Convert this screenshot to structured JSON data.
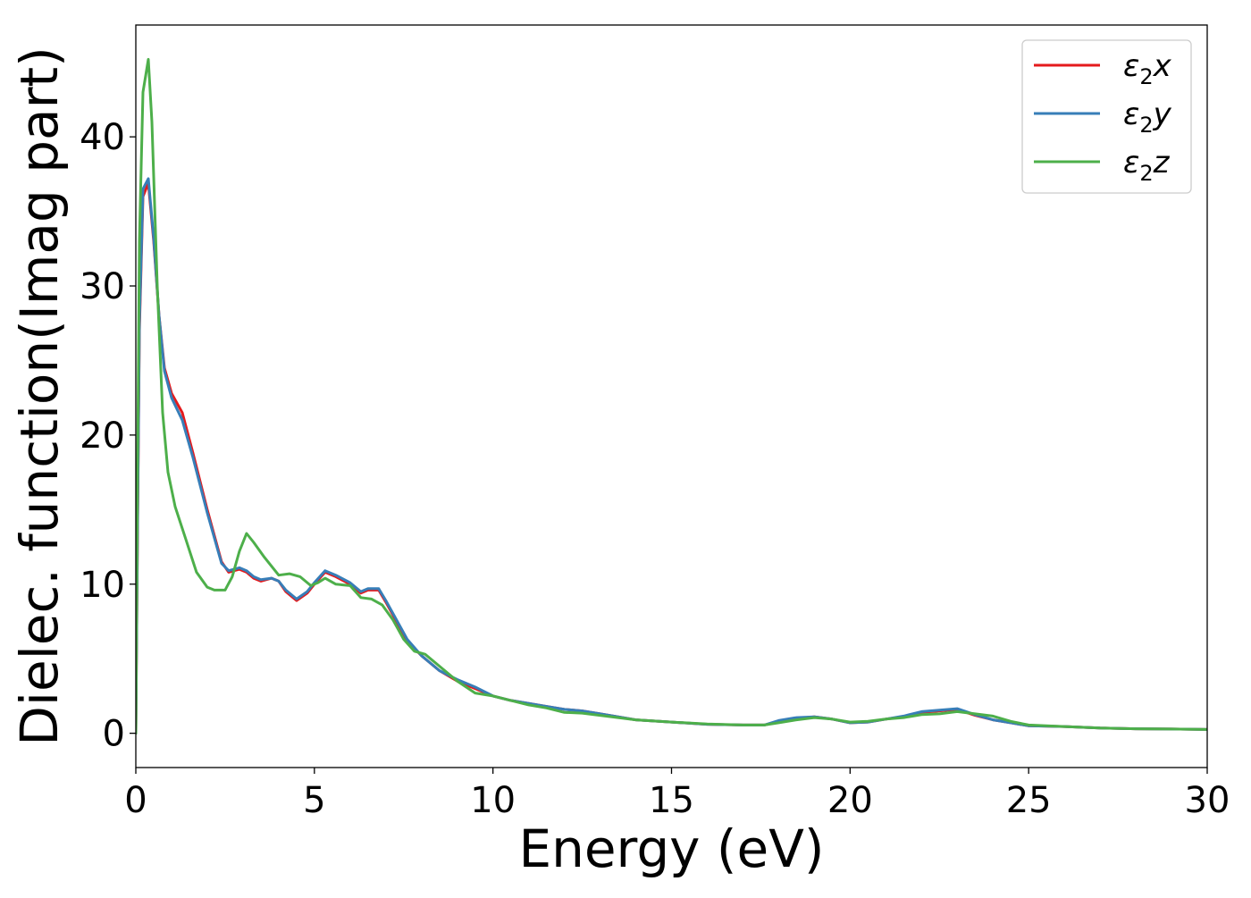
{
  "chart_data": {
    "type": "line",
    "title": "",
    "xlabel": "Energy (eV)",
    "ylabel": "Dielec. function(Imag part)",
    "xlim": [
      0,
      30
    ],
    "ylim": [
      -2.3,
      47.5
    ],
    "xticks": [
      0,
      5,
      10,
      15,
      20,
      25,
      30
    ],
    "yticks": [
      0,
      10,
      20,
      30,
      40
    ],
    "xtick_labels": [
      "0",
      "5",
      "10",
      "15",
      "20",
      "25",
      "30"
    ],
    "ytick_labels": [
      "0",
      "10",
      "20",
      "30",
      "40"
    ],
    "grid": false,
    "legend_position": "top-right",
    "series": [
      {
        "name": "ε2x",
        "legend_base": "ε",
        "legend_sub": "2",
        "legend_tail": "x",
        "color": "#e41a1c",
        "points": [
          [
            0,
            0
          ],
          [
            0.05,
            14
          ],
          [
            0.1,
            27
          ],
          [
            0.2,
            36
          ],
          [
            0.35,
            36.9
          ],
          [
            0.5,
            33
          ],
          [
            0.65,
            28
          ],
          [
            0.8,
            24.5
          ],
          [
            1.0,
            22.8
          ],
          [
            1.3,
            21.5
          ],
          [
            1.6,
            18.8
          ],
          [
            2.0,
            15
          ],
          [
            2.4,
            11.5
          ],
          [
            2.6,
            10.8
          ],
          [
            2.9,
            11
          ],
          [
            3.1,
            10.8
          ],
          [
            3.3,
            10.4
          ],
          [
            3.5,
            10.2
          ],
          [
            3.8,
            10.4
          ],
          [
            4.0,
            10.2
          ],
          [
            4.2,
            9.5
          ],
          [
            4.5,
            8.9
          ],
          [
            4.8,
            9.4
          ],
          [
            5.0,
            10
          ],
          [
            5.3,
            10.8
          ],
          [
            5.6,
            10.5
          ],
          [
            6.0,
            10
          ],
          [
            6.3,
            9.4
          ],
          [
            6.5,
            9.6
          ],
          [
            6.8,
            9.6
          ],
          [
            7.0,
            8.8
          ],
          [
            7.3,
            7.5
          ],
          [
            7.6,
            6.2
          ],
          [
            8.0,
            5.2
          ],
          [
            8.5,
            4.2
          ],
          [
            9.0,
            3.5
          ],
          [
            9.5,
            3.0
          ],
          [
            10.0,
            2.5
          ],
          [
            10.5,
            2.2
          ],
          [
            11.0,
            2.0
          ],
          [
            11.5,
            1.8
          ],
          [
            12.0,
            1.6
          ],
          [
            12.5,
            1.5
          ],
          [
            13.0,
            1.3
          ],
          [
            14.0,
            0.9
          ],
          [
            15.0,
            0.75
          ],
          [
            16.0,
            0.6
          ],
          [
            17.0,
            0.55
          ],
          [
            17.6,
            0.55
          ],
          [
            18.0,
            0.8
          ],
          [
            18.5,
            1.0
          ],
          [
            19.0,
            1.1
          ],
          [
            19.5,
            0.95
          ],
          [
            20.0,
            0.7
          ],
          [
            20.5,
            0.75
          ],
          [
            21.0,
            0.95
          ],
          [
            21.5,
            1.1
          ],
          [
            22.0,
            1.4
          ],
          [
            22.5,
            1.5
          ],
          [
            23.0,
            1.6
          ],
          [
            23.5,
            1.2
          ],
          [
            24.0,
            0.9
          ],
          [
            24.5,
            0.7
          ],
          [
            25.0,
            0.5
          ],
          [
            26.0,
            0.45
          ],
          [
            27.0,
            0.35
          ],
          [
            28.0,
            0.3
          ],
          [
            29.0,
            0.28
          ],
          [
            30.0,
            0.25
          ]
        ]
      },
      {
        "name": "ε2y",
        "legend_base": "ε",
        "legend_sub": "2",
        "legend_tail": "y",
        "color": "#377eb8",
        "points": [
          [
            0,
            0
          ],
          [
            0.05,
            14.5
          ],
          [
            0.1,
            27.5
          ],
          [
            0.2,
            36.5
          ],
          [
            0.35,
            37.2
          ],
          [
            0.5,
            33.2
          ],
          [
            0.65,
            28
          ],
          [
            0.8,
            24.3
          ],
          [
            1.0,
            22.5
          ],
          [
            1.3,
            21.0
          ],
          [
            1.6,
            18.5
          ],
          [
            2.0,
            14.8
          ],
          [
            2.4,
            11.4
          ],
          [
            2.6,
            10.9
          ],
          [
            2.9,
            11.1
          ],
          [
            3.1,
            10.9
          ],
          [
            3.3,
            10.5
          ],
          [
            3.5,
            10.3
          ],
          [
            3.8,
            10.4
          ],
          [
            4.0,
            10.2
          ],
          [
            4.2,
            9.6
          ],
          [
            4.5,
            9.0
          ],
          [
            4.8,
            9.5
          ],
          [
            5.0,
            10.1
          ],
          [
            5.3,
            10.9
          ],
          [
            5.6,
            10.6
          ],
          [
            6.0,
            10.1
          ],
          [
            6.3,
            9.5
          ],
          [
            6.5,
            9.7
          ],
          [
            6.8,
            9.7
          ],
          [
            7.0,
            8.9
          ],
          [
            7.3,
            7.6
          ],
          [
            7.6,
            6.3
          ],
          [
            8.0,
            5.2
          ],
          [
            8.5,
            4.2
          ],
          [
            9.0,
            3.6
          ],
          [
            9.5,
            3.1
          ],
          [
            10.0,
            2.5
          ],
          [
            10.5,
            2.2
          ],
          [
            11.0,
            2.0
          ],
          [
            11.5,
            1.8
          ],
          [
            12.0,
            1.6
          ],
          [
            12.5,
            1.5
          ],
          [
            13.0,
            1.3
          ],
          [
            14.0,
            0.9
          ],
          [
            15.0,
            0.75
          ],
          [
            16.0,
            0.6
          ],
          [
            17.0,
            0.55
          ],
          [
            17.6,
            0.55
          ],
          [
            18.0,
            0.85
          ],
          [
            18.5,
            1.05
          ],
          [
            19.0,
            1.1
          ],
          [
            19.5,
            0.95
          ],
          [
            20.0,
            0.7
          ],
          [
            20.5,
            0.75
          ],
          [
            21.0,
            0.95
          ],
          [
            21.5,
            1.15
          ],
          [
            22.0,
            1.45
          ],
          [
            22.5,
            1.55
          ],
          [
            23.0,
            1.65
          ],
          [
            23.5,
            1.25
          ],
          [
            24.0,
            0.9
          ],
          [
            24.5,
            0.7
          ],
          [
            25.0,
            0.5
          ],
          [
            26.0,
            0.45
          ],
          [
            27.0,
            0.35
          ],
          [
            28.0,
            0.3
          ],
          [
            29.0,
            0.28
          ],
          [
            30.0,
            0.25
          ]
        ]
      },
      {
        "name": "ε2z",
        "legend_base": "ε",
        "legend_sub": "2",
        "legend_tail": "z",
        "color": "#4daf4a",
        "points": [
          [
            0,
            0
          ],
          [
            0.05,
            18
          ],
          [
            0.1,
            33
          ],
          [
            0.2,
            43
          ],
          [
            0.35,
            45.2
          ],
          [
            0.45,
            41
          ],
          [
            0.6,
            30
          ],
          [
            0.75,
            21.5
          ],
          [
            0.9,
            17.5
          ],
          [
            1.1,
            15.2
          ],
          [
            1.4,
            13.0
          ],
          [
            1.7,
            10.8
          ],
          [
            2.0,
            9.8
          ],
          [
            2.2,
            9.6
          ],
          [
            2.5,
            9.6
          ],
          [
            2.7,
            10.5
          ],
          [
            2.9,
            12.2
          ],
          [
            3.1,
            13.4
          ],
          [
            3.3,
            12.8
          ],
          [
            3.6,
            11.8
          ],
          [
            4.0,
            10.6
          ],
          [
            4.3,
            10.7
          ],
          [
            4.6,
            10.5
          ],
          [
            4.9,
            9.9
          ],
          [
            5.1,
            10.1
          ],
          [
            5.3,
            10.4
          ],
          [
            5.6,
            10.0
          ],
          [
            6.0,
            9.9
          ],
          [
            6.3,
            9.1
          ],
          [
            6.6,
            9.0
          ],
          [
            6.9,
            8.6
          ],
          [
            7.2,
            7.6
          ],
          [
            7.5,
            6.3
          ],
          [
            7.8,
            5.5
          ],
          [
            8.1,
            5.3
          ],
          [
            8.5,
            4.5
          ],
          [
            9.0,
            3.5
          ],
          [
            9.5,
            2.7
          ],
          [
            10.0,
            2.5
          ],
          [
            10.5,
            2.2
          ],
          [
            11.0,
            1.9
          ],
          [
            11.5,
            1.7
          ],
          [
            12.0,
            1.4
          ],
          [
            12.5,
            1.35
          ],
          [
            13.0,
            1.2
          ],
          [
            14.0,
            0.9
          ],
          [
            15.0,
            0.75
          ],
          [
            16.0,
            0.62
          ],
          [
            17.0,
            0.55
          ],
          [
            17.6,
            0.55
          ],
          [
            18.0,
            0.7
          ],
          [
            18.5,
            0.9
          ],
          [
            19.0,
            1.05
          ],
          [
            19.5,
            0.95
          ],
          [
            20.0,
            0.75
          ],
          [
            20.5,
            0.8
          ],
          [
            21.0,
            0.95
          ],
          [
            21.5,
            1.05
          ],
          [
            22.0,
            1.25
          ],
          [
            22.5,
            1.3
          ],
          [
            23.0,
            1.45
          ],
          [
            23.5,
            1.3
          ],
          [
            24.0,
            1.15
          ],
          [
            24.5,
            0.8
          ],
          [
            25.0,
            0.55
          ],
          [
            26.0,
            0.45
          ],
          [
            27.0,
            0.35
          ],
          [
            28.0,
            0.3
          ],
          [
            29.0,
            0.28
          ],
          [
            30.0,
            0.25
          ]
        ]
      }
    ]
  }
}
